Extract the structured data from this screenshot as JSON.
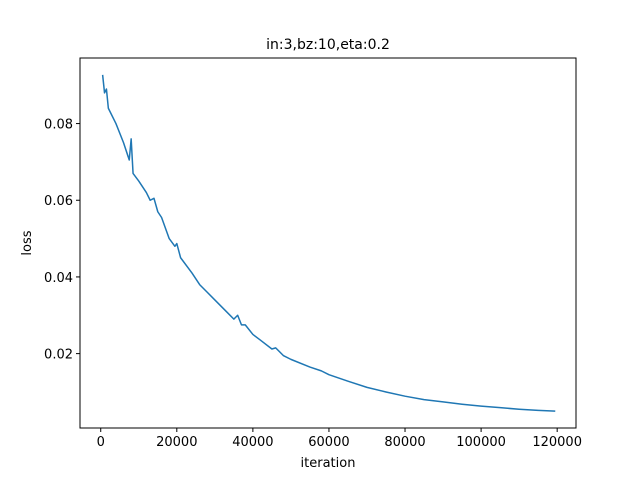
{
  "chart_data": {
    "type": "line",
    "title": "in:3,bz:10,eta:0.2",
    "xlabel": "iteration",
    "ylabel": "loss",
    "x": [
      500,
      1000,
      1500,
      2000,
      4000,
      6000,
      7500,
      8000,
      8500,
      10000,
      12000,
      13000,
      14000,
      15000,
      16000,
      18000,
      19500,
      20000,
      21000,
      24000,
      26000,
      28000,
      30000,
      33000,
      35000,
      36000,
      37000,
      38000,
      40000,
      42000,
      45000,
      46000,
      48000,
      50000,
      55000,
      58000,
      60000,
      65000,
      70000,
      75000,
      80000,
      85000,
      90000,
      95000,
      100000,
      105000,
      110000,
      115000,
      119500
    ],
    "values": [
      0.0927,
      0.088,
      0.089,
      0.084,
      0.08,
      0.075,
      0.0705,
      0.076,
      0.067,
      0.065,
      0.062,
      0.06,
      0.0605,
      0.057,
      0.0555,
      0.05,
      0.048,
      0.0487,
      0.045,
      0.041,
      0.038,
      0.036,
      0.034,
      0.031,
      0.029,
      0.03,
      0.0275,
      0.0275,
      0.025,
      0.0235,
      0.0212,
      0.0215,
      0.0195,
      0.0185,
      0.0165,
      0.0155,
      0.0145,
      0.0128,
      0.0112,
      0.01,
      0.0089,
      0.008,
      0.0074,
      0.0068,
      0.0063,
      0.0059,
      0.0055,
      0.0052,
      0.005
    ],
    "color": "#1f77b4",
    "xlim": [
      -5450,
      124950
    ],
    "xticks": [
      0,
      20000,
      40000,
      60000,
      80000,
      100000,
      120000
    ],
    "ylim": [
      0.0006,
      0.0971
    ],
    "yticks": [
      0.02,
      0.04,
      0.06,
      0.08
    ],
    "grid": false
  }
}
